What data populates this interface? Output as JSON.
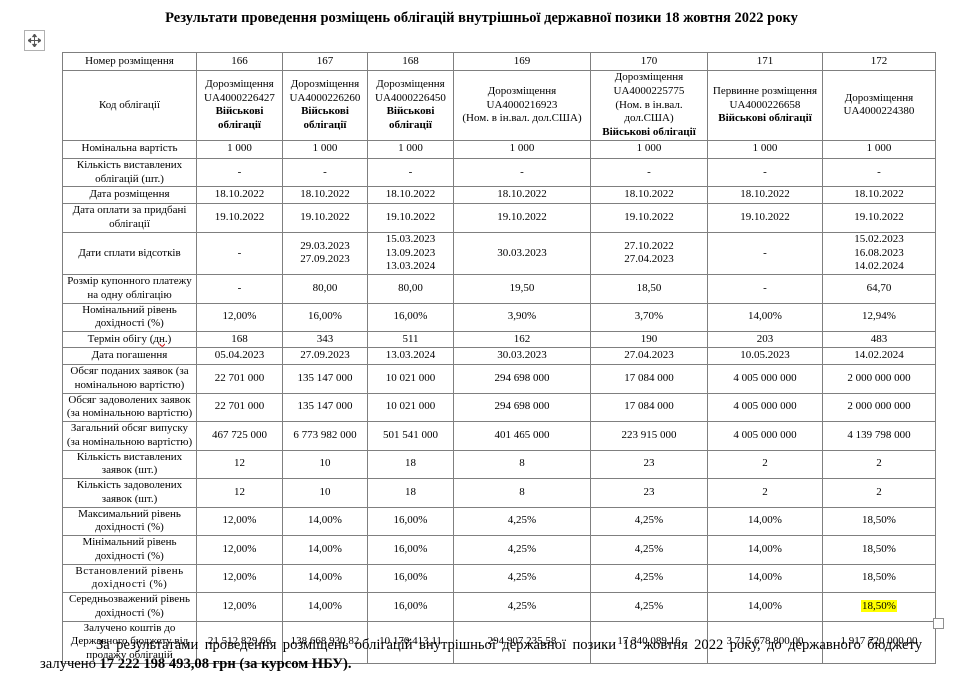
{
  "title": "Результати проведення розміщень облігацій внутрішньої державної позики 18 жовтня 2022 року",
  "icons": {
    "table_move_handle": "four-direction-move-arrows",
    "table_resize_handle": "small-square-resize"
  },
  "highlight_color": "#ffff00",
  "table": {
    "header_row": {
      "label": "Номер розміщення",
      "values": [
        "166",
        "167",
        "168",
        "169",
        "170",
        "171",
        "172"
      ]
    },
    "bond_code_row": {
      "label": "Код облігації",
      "cells": [
        {
          "lines": [
            {
              "text": "Дорозміщення"
            },
            {
              "text": "UA4000226427"
            },
            {
              "text": "Військові облігації",
              "bold": true
            }
          ]
        },
        {
          "lines": [
            {
              "text": "Дорозміщення"
            },
            {
              "text": "UA4000226260"
            },
            {
              "text": "Військові облігації",
              "bold": true
            }
          ]
        },
        {
          "lines": [
            {
              "text": "Дорозміщення"
            },
            {
              "text": "UA4000226450"
            },
            {
              "text": "Військові облігації",
              "bold": true
            }
          ]
        },
        {
          "lines": [
            {
              "text": "Дорозміщення"
            },
            {
              "text": "UA4000216923"
            },
            {
              "text": "(Ном. в ін.вал. дол.США)"
            }
          ]
        },
        {
          "lines": [
            {
              "text": "Дорозміщення"
            },
            {
              "text": "UA4000225775"
            },
            {
              "text": "(Ном. в ін.вал. дол.США)"
            },
            {
              "text": "Військові облігації",
              "bold": true
            }
          ]
        },
        {
          "lines": [
            {
              "text": "Первинне розміщення"
            },
            {
              "text": "UA4000226658"
            },
            {
              "text": "Військові облігації",
              "bold": true
            }
          ]
        },
        {
          "lines": [
            {
              "text": "Дорозміщення"
            },
            {
              "text": "UA4000224380"
            }
          ]
        }
      ]
    },
    "rows": [
      {
        "label": "Номінальна вартість",
        "values": [
          "1 000",
          "1 000",
          "1 000",
          "1 000",
          "1 000",
          "1 000",
          "1 000"
        ]
      },
      {
        "label": "Кількість виставлених облігацій (шт.)",
        "values": [
          "-",
          "-",
          "-",
          "-",
          "-",
          "-",
          "-"
        ]
      },
      {
        "label": "Дата розміщення",
        "values": [
          "18.10.2022",
          "18.10.2022",
          "18.10.2022",
          "18.10.2022",
          "18.10.2022",
          "18.10.2022",
          "18.10.2022"
        ]
      },
      {
        "label": "Дата оплати за придбані облігації",
        "values": [
          "19.10.2022",
          "19.10.2022",
          "19.10.2022",
          "19.10.2022",
          "19.10.2022",
          "19.10.2022",
          "19.10.2022"
        ]
      },
      {
        "label": "Дати сплати відсотків",
        "values": [
          "-",
          "29.03.2023\n27.09.2023",
          "15.03.2023\n13.09.2023\n13.03.2024",
          "30.03.2023",
          "27.10.2022\n27.04.2023",
          "-",
          "15.02.2023\n16.08.2023\n14.02.2024"
        ]
      },
      {
        "label": "Розмір купонного платежу на одну облігацію",
        "values": [
          "-",
          "80,00",
          "80,00",
          "19,50",
          "18,50",
          "-",
          "64,70"
        ]
      },
      {
        "label": "Номінальний рівень дохідності (%)",
        "values": [
          "12,00%",
          "16,00%",
          "16,00%",
          "3,90%",
          "3,70%",
          "14,00%",
          "12,94%"
        ]
      },
      {
        "label_parts": [
          {
            "text": "Термін обігу ("
          },
          {
            "text": "дн",
            "misspelled": true
          },
          {
            "text": ".)"
          }
        ],
        "values": [
          "168",
          "343",
          "511",
          "162",
          "190",
          "203",
          "483"
        ]
      },
      {
        "label": "Дата погашення",
        "values": [
          "05.04.2023",
          "27.09.2023",
          "13.03.2024",
          "30.03.2023",
          "27.04.2023",
          "10.05.2023",
          "14.02.2024"
        ]
      },
      {
        "label": "Обсяг поданих заявок (за номінальною вартістю)",
        "values": [
          "22 701 000",
          "135 147 000",
          "10 021 000",
          "294 698 000",
          "17 084 000",
          "4 005 000 000",
          "2 000 000 000"
        ]
      },
      {
        "label": "Обсяг задоволених заявок (за номінальною вартістю)",
        "values": [
          "22 701 000",
          "135 147 000",
          "10 021 000",
          "294 698 000",
          "17 084 000",
          "4 005 000 000",
          "2 000 000 000"
        ]
      },
      {
        "label": "Загальний обсяг випуску (за номінальною вартістю)",
        "values": [
          "467 725 000",
          "6 773 982 000",
          "501 541 000",
          "401 465 000",
          "223 915 000",
          "4 005 000 000",
          "4 139 798 000"
        ]
      },
      {
        "label": "Кількість виставлених заявок (шт.)",
        "values": [
          "12",
          "10",
          "18",
          "8",
          "23",
          "2",
          "2"
        ]
      },
      {
        "label": "Кількість задоволених заявок (шт.)",
        "values": [
          "12",
          "10",
          "18",
          "8",
          "23",
          "2",
          "2"
        ]
      },
      {
        "label": "Максимальний рівень дохідності (%)",
        "values": [
          "12,00%",
          "14,00%",
          "16,00%",
          "4,25%",
          "4,25%",
          "14,00%",
          "18,50%"
        ]
      },
      {
        "label": "Мінімальний рівень дохідності (%)",
        "values": [
          "12,00%",
          "14,00%",
          "16,00%",
          "4,25%",
          "4,25%",
          "14,00%",
          "18,50%"
        ]
      },
      {
        "label": "Встановлений рівень дохідності (%)",
        "label_style": "expanded",
        "values": [
          "12,00%",
          "14,00%",
          "16,00%",
          "4,25%",
          "4,25%",
          "14,00%",
          "18,50%"
        ]
      },
      {
        "label": "Середньозважений рівень дохідності (%)",
        "values": [
          "12,00%",
          "14,00%",
          "16,00%",
          "4,25%",
          "4,25%",
          "14,00%",
          "18,50%"
        ],
        "highlight_index": 6
      },
      {
        "label": "Залучено коштів до Державного бюджету від продажу облігацій",
        "values": [
          "21 512 829,66",
          "138 668 930,82",
          "10 170 413,11",
          "294 907 235,58",
          "17 340 089,16",
          "3 715 678 800,00",
          "1 917 720 000,00"
        ]
      }
    ]
  },
  "footer": {
    "text_regular": "За результатами проведення розміщень облігацій внутрішньої державної позики 18 жовтня 2022 року, до державного бюджету залучено ",
    "text_bold": "17 222 198 493,08 грн (за курсом НБУ)."
  }
}
